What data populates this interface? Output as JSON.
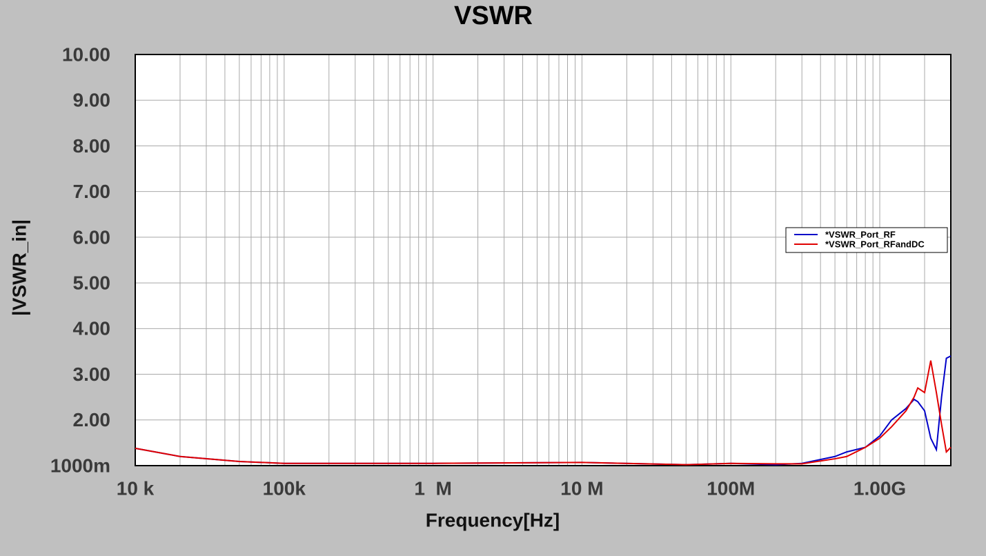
{
  "chart_data": {
    "type": "line",
    "title": "VSWR",
    "x_label": "Frequency[Hz]",
    "y_label": "|VSWR_in|",
    "x_scale": "log",
    "grid": true,
    "minor_grid": true,
    "legend_position": "right",
    "xlim": [
      10000,
      3000000000
    ],
    "ylim": [
      1,
      10
    ],
    "xticks": [
      {
        "value": 10000,
        "label": "10 k"
      },
      {
        "value": 100000,
        "label": "100k"
      },
      {
        "value": 1000000,
        "label": "1  M"
      },
      {
        "value": 10000000,
        "label": "10 M"
      },
      {
        "value": 100000000,
        "label": "100M"
      },
      {
        "value": 1000000000,
        "label": "1.00G"
      }
    ],
    "yticks": [
      {
        "value": 1,
        "label": "1000m"
      },
      {
        "value": 2,
        "label": "2.00"
      },
      {
        "value": 3,
        "label": "3.00"
      },
      {
        "value": 4,
        "label": "4.00"
      },
      {
        "value": 5,
        "label": "5.00"
      },
      {
        "value": 6,
        "label": "6.00"
      },
      {
        "value": 7,
        "label": "7.00"
      },
      {
        "value": 8,
        "label": "8.00"
      },
      {
        "value": 9,
        "label": "9.00"
      },
      {
        "value": 10,
        "label": "10.00"
      }
    ],
    "x": [
      10000,
      20000,
      50000,
      100000,
      1000000,
      10000000,
      50000000,
      100000000,
      200000000,
      300000000,
      500000000,
      600000000,
      800000000,
      1000000000,
      1200000000,
      1500000000,
      1700000000,
      1800000000,
      2000000000,
      2200000000,
      2400000000,
      2600000000,
      2800000000,
      3000000000
    ],
    "series": [
      {
        "name": "*VSWR_Port_RF",
        "color": "#0000c8",
        "values": [
          1.38,
          1.2,
          1.09,
          1.05,
          1.05,
          1.07,
          1.02,
          1.05,
          1.02,
          1.05,
          1.2,
          1.3,
          1.4,
          1.65,
          2.0,
          2.25,
          2.45,
          2.4,
          2.2,
          1.6,
          1.35,
          2.5,
          3.35,
          3.4
        ]
      },
      {
        "name": "*VSWR_Port_RFandDC",
        "color": "#e00000",
        "values": [
          1.38,
          1.2,
          1.09,
          1.05,
          1.05,
          1.07,
          1.02,
          1.05,
          1.04,
          1.04,
          1.15,
          1.2,
          1.4,
          1.6,
          1.85,
          2.2,
          2.5,
          2.7,
          2.6,
          3.3,
          2.6,
          1.9,
          1.3,
          1.4
        ]
      }
    ]
  }
}
